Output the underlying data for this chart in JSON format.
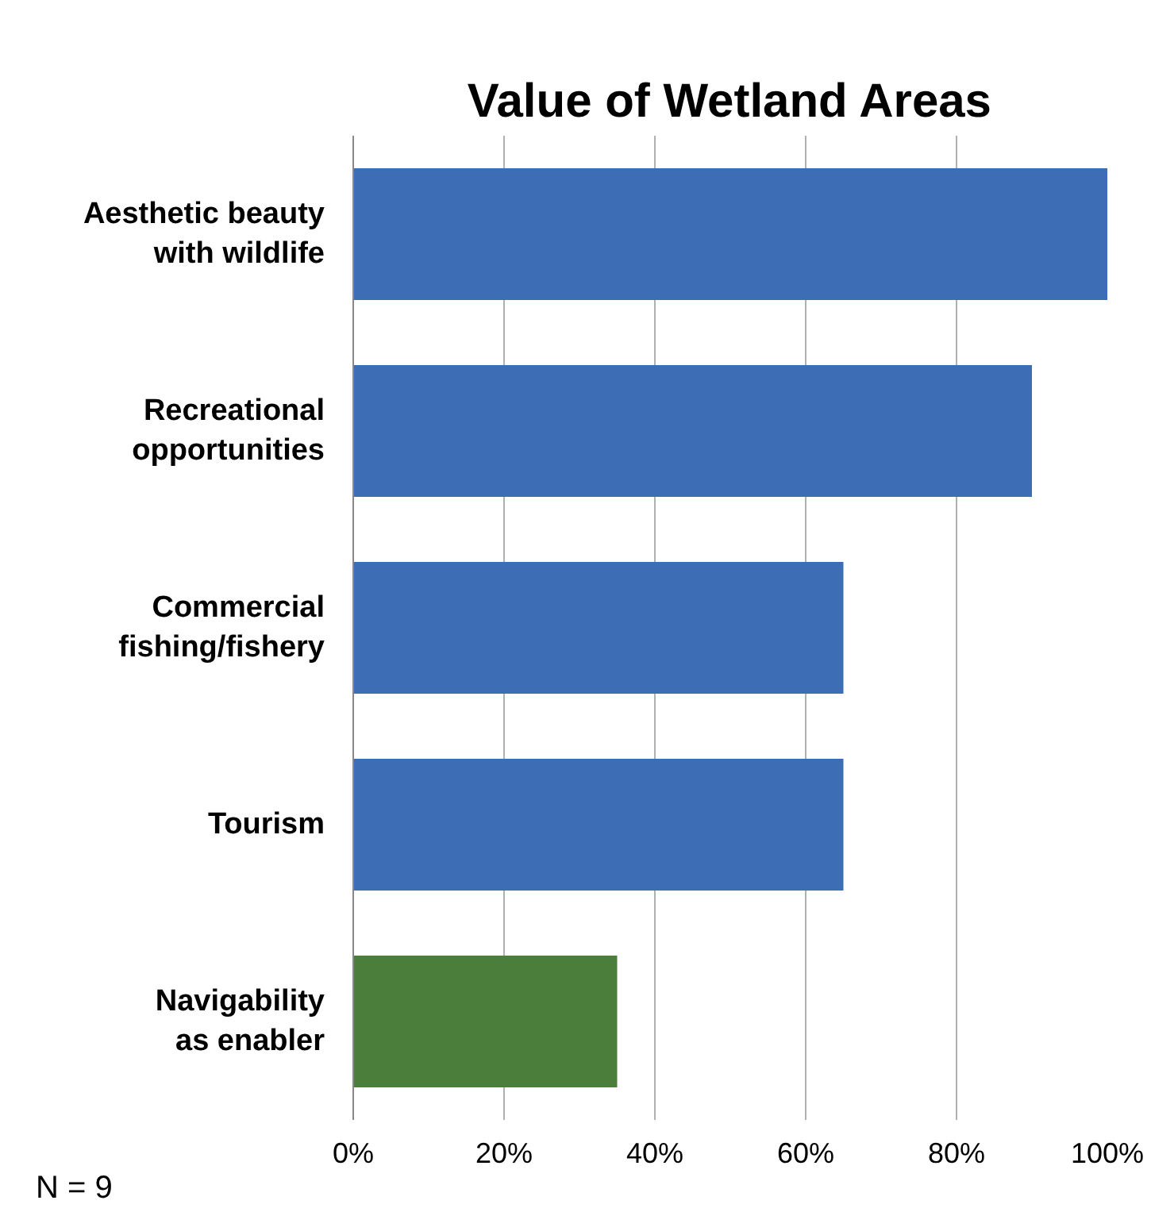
{
  "chart_data": {
    "type": "bar",
    "orientation": "horizontal",
    "title": "Value of Wetland Areas",
    "categories": [
      "Aesthetic beauty with wildlife",
      "Recreational opportunities",
      "Commercial fishing/fishery",
      "Tourism",
      "Navigability as enabler"
    ],
    "values": [
      100,
      90,
      65,
      65,
      35
    ],
    "colors": [
      "#3d6db5",
      "#3d6db5",
      "#3d6db5",
      "#3d6db5",
      "#4a7e3a"
    ],
    "xlim": [
      0,
      100
    ],
    "xticks": [
      {
        "value": 0,
        "label": "0%"
      },
      {
        "value": 20,
        "label": "20%"
      },
      {
        "value": 40,
        "label": "40%"
      },
      {
        "value": 60,
        "label": "60%"
      },
      {
        "value": 80,
        "label": "80%"
      },
      {
        "value": 100,
        "label": "100%"
      }
    ],
    "grid": "x",
    "annotations": [
      "N = 9"
    ]
  }
}
